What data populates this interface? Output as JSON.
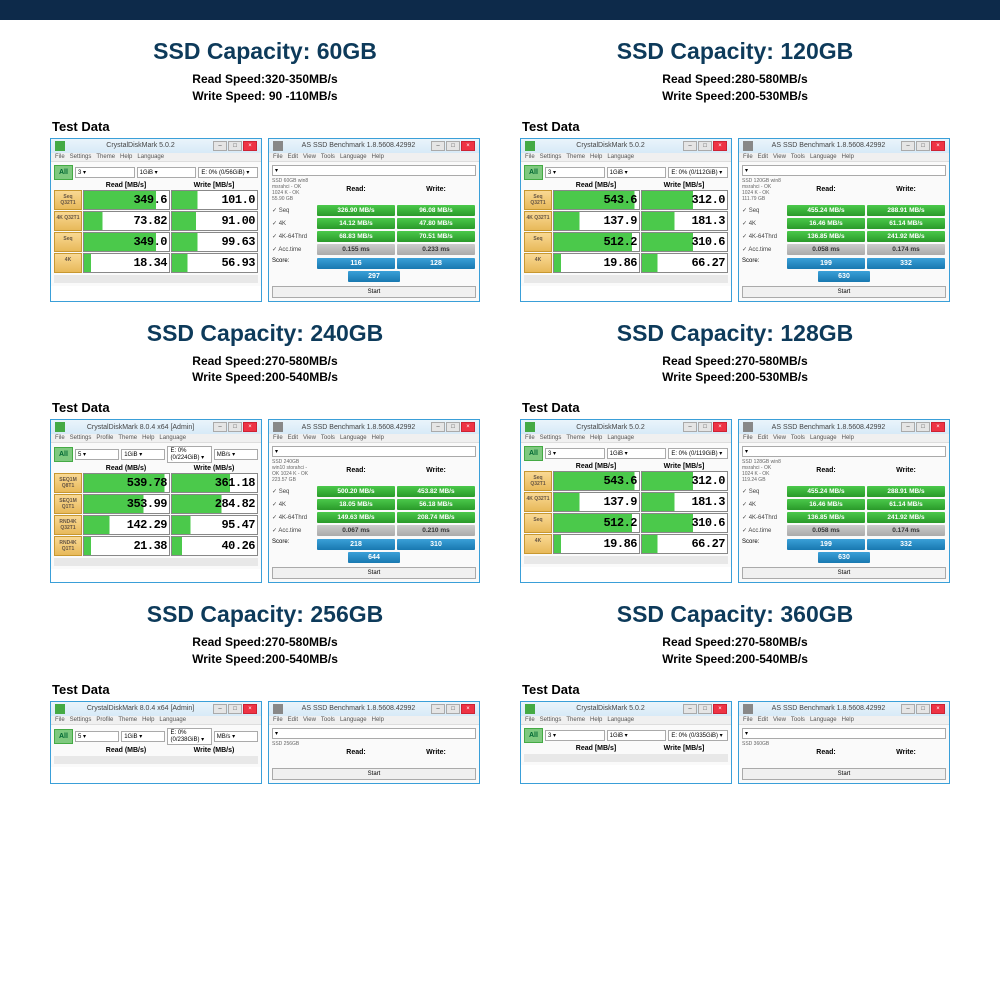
{
  "panels": [
    {
      "title": "SSD Capacity: 60GB",
      "read": "Read Speed:320-350MB/s",
      "write": "Write Speed: 90 -110MB/s",
      "testlabel": "Test Data",
      "cdm": {
        "wintitle": "CrystalDiskMark 5.0.2",
        "menus": [
          "File",
          "Settings",
          "Theme",
          "Help",
          "Language"
        ],
        "all": "All",
        "selects": [
          "3 ▾",
          "1GiB ▾",
          "E: 0% (0/56GiB) ▾"
        ],
        "hdr_read": "Read [MB/s]",
        "hdr_write": "Write [MB/s]",
        "rows": [
          {
            "btn": "Seq\nQ32T1",
            "r": "349.6",
            "w": "101.0",
            "rfill": 85,
            "wfill": 30
          },
          {
            "btn": "4K\nQ32T1",
            "r": "73.82",
            "w": "91.00",
            "rfill": 22,
            "wfill": 28
          },
          {
            "btn": "Seq",
            "r": "349.0",
            "w": "99.63",
            "rfill": 85,
            "wfill": 30
          },
          {
            "btn": "4K",
            "r": "18.34",
            "w": "56.93",
            "rfill": 8,
            "wfill": 18
          }
        ]
      },
      "as": {
        "wintitle": "AS SSD Benchmark 1.8.5608.42992",
        "menus": [
          "File",
          "Edit",
          "View",
          "Tools",
          "Language",
          "Help"
        ],
        "info": "SSD 60GB\nwin8\nmsrahci - OK\n1024 K - OK\n55.90 GB",
        "hdr_read": "Read:",
        "hdr_write": "Write:",
        "rows": [
          {
            "lab": "✓ Seq",
            "r": "326.90 MB/s",
            "w": "96.08 MB/s"
          },
          {
            "lab": "✓ 4K",
            "r": "14.12 MB/s",
            "w": "47.80 MB/s"
          },
          {
            "lab": "✓ 4K-64Thrd",
            "r": "68.83 MB/s",
            "w": "70.51 MB/s"
          },
          {
            "lab": "✓ Acc.time",
            "r": "0.155 ms",
            "w": "0.233 ms",
            "gray": true
          }
        ],
        "score_r": "116",
        "score_w": "128",
        "score_t": "297",
        "start": "Start"
      }
    },
    {
      "title": "SSD Capacity: 120GB",
      "read": "Read Speed:280-580MB/s",
      "write": "Write Speed:200-530MB/s",
      "testlabel": "Test Data",
      "cdm": {
        "wintitle": "CrystalDiskMark 5.0.2",
        "menus": [
          "File",
          "Settings",
          "Theme",
          "Help",
          "Language"
        ],
        "all": "All",
        "selects": [
          "3 ▾",
          "1GiB ▾",
          "E: 0% (0/112GiB) ▾"
        ],
        "hdr_read": "Read [MB/s]",
        "hdr_write": "Write [MB/s]",
        "rows": [
          {
            "btn": "Seq\nQ32T1",
            "r": "543.6",
            "w": "312.0",
            "rfill": 95,
            "wfill": 60
          },
          {
            "btn": "4K\nQ32T1",
            "r": "137.9",
            "w": "181.3",
            "rfill": 30,
            "wfill": 38
          },
          {
            "btn": "Seq",
            "r": "512.2",
            "w": "310.6",
            "rfill": 92,
            "wfill": 60
          },
          {
            "btn": "4K",
            "r": "19.86",
            "w": "66.27",
            "rfill": 8,
            "wfill": 18
          }
        ]
      },
      "as": {
        "wintitle": "AS SSD Benchmark 1.8.5608.42992",
        "menus": [
          "File",
          "Edit",
          "View",
          "Tools",
          "Language",
          "Help"
        ],
        "info": "SSD 120GB\nwin8\nmsrahci - OK\n1024 K - OK\n111.79 GB",
        "hdr_read": "Read:",
        "hdr_write": "Write:",
        "rows": [
          {
            "lab": "✓ Seq",
            "r": "455.24 MB/s",
            "w": "288.91 MB/s"
          },
          {
            "lab": "✓ 4K",
            "r": "16.46 MB/s",
            "w": "61.14 MB/s"
          },
          {
            "lab": "✓ 4K-64Thrd",
            "r": "136.85 MB/s",
            "w": "241.92 MB/s"
          },
          {
            "lab": "✓ Acc.time",
            "r": "0.058 ms",
            "w": "0.174 ms",
            "gray": true
          }
        ],
        "score_r": "199",
        "score_w": "332",
        "score_t": "630",
        "start": "Start"
      }
    },
    {
      "title": "SSD Capacity: 240GB",
      "read": "Read Speed:270-580MB/s",
      "write": "Write Speed:200-540MB/s",
      "testlabel": "Test Data",
      "cdm": {
        "wintitle": "CrystalDiskMark 8.0.4 x64 [Admin]",
        "menus": [
          "File",
          "Settings",
          "Profile",
          "Theme",
          "Help",
          "Language"
        ],
        "all": "All",
        "selects": [
          "5 ▾",
          "1GiB ▾",
          "E: 0% (0/224GiB) ▾",
          "MB/s ▾"
        ],
        "hdr_read": "Read (MB/s)",
        "hdr_write": "Write (MB/s)",
        "rows": [
          {
            "btn": "SEQ1M\nQ8T1",
            "r": "539.78",
            "w": "361.18",
            "rfill": 95,
            "wfill": 68
          },
          {
            "btn": "SEQ1M\nQ1T1",
            "r": "353.99",
            "w": "284.82",
            "rfill": 70,
            "wfill": 58
          },
          {
            "btn": "RND4K\nQ32T1",
            "r": "142.29",
            "w": "95.47",
            "rfill": 30,
            "wfill": 22
          },
          {
            "btn": "RND4K\nQ1T1",
            "r": "21.38",
            "w": "40.26",
            "rfill": 8,
            "wfill": 12
          }
        ]
      },
      "as": {
        "wintitle": "AS SSD Benchmark 1.8.5608.42992",
        "menus": [
          "File",
          "Edit",
          "View",
          "Tools",
          "Language",
          "Help"
        ],
        "info": "SSD 240GB\nwin10\nstorahci - OK\n1024 K - OK\n223.57 GB",
        "hdr_read": "Read:",
        "hdr_write": "Write:",
        "rows": [
          {
            "lab": "✓ Seq",
            "r": "500.20 MB/s",
            "w": "453.82 MB/s"
          },
          {
            "lab": "✓ 4K",
            "r": "18.05 MB/s",
            "w": "56.18 MB/s"
          },
          {
            "lab": "✓ 4K-64Thrd",
            "r": "149.63 MB/s",
            "w": "208.74 MB/s"
          },
          {
            "lab": "✓ Acc.time",
            "r": "0.067 ms",
            "w": "0.210 ms",
            "gray": true
          }
        ],
        "score_r": "218",
        "score_w": "310",
        "score_t": "644",
        "start": "Start"
      }
    },
    {
      "title": "SSD Capacity: 128GB",
      "read": "Read Speed:270-580MB/s",
      "write": "Write Speed:200-530MB/s",
      "testlabel": "Test Data",
      "cdm": {
        "wintitle": "CrystalDiskMark 5.0.2",
        "menus": [
          "File",
          "Settings",
          "Theme",
          "Help",
          "Language"
        ],
        "all": "All",
        "selects": [
          "3 ▾",
          "1GiB ▾",
          "E: 0% (0/119GiB) ▾"
        ],
        "hdr_read": "Read [MB/s]",
        "hdr_write": "Write [MB/s]",
        "rows": [
          {
            "btn": "Seq\nQ32T1",
            "r": "543.6",
            "w": "312.0",
            "rfill": 95,
            "wfill": 60
          },
          {
            "btn": "4K\nQ32T1",
            "r": "137.9",
            "w": "181.3",
            "rfill": 30,
            "wfill": 38
          },
          {
            "btn": "Seq",
            "r": "512.2",
            "w": "310.6",
            "rfill": 92,
            "wfill": 60
          },
          {
            "btn": "4K",
            "r": "19.86",
            "w": "66.27",
            "rfill": 8,
            "wfill": 18
          }
        ]
      },
      "as": {
        "wintitle": "AS SSD Benchmark 1.8.5608.42992",
        "menus": [
          "File",
          "Edit",
          "View",
          "Tools",
          "Language",
          "Help"
        ],
        "info": "SSD 128GB\nwin8\nmsrahci - OK\n1024 K - OK\n119.24 GB",
        "hdr_read": "Read:",
        "hdr_write": "Write:",
        "rows": [
          {
            "lab": "✓ Seq",
            "r": "455.24 MB/s",
            "w": "288.91 MB/s"
          },
          {
            "lab": "✓ 4K",
            "r": "16.46 MB/s",
            "w": "61.14 MB/s"
          },
          {
            "lab": "✓ 4K-64Thrd",
            "r": "136.85 MB/s",
            "w": "241.92 MB/s"
          },
          {
            "lab": "✓ Acc.time",
            "r": "0.058 ms",
            "w": "0.174 ms",
            "gray": true
          }
        ],
        "score_r": "199",
        "score_w": "332",
        "score_t": "630",
        "start": "Start"
      }
    },
    {
      "title": "SSD Capacity: 256GB",
      "read": "Read Speed:270-580MB/s",
      "write": "Write Speed:200-540MB/s",
      "testlabel": "Test Data",
      "cdm": {
        "wintitle": "CrystalDiskMark 8.0.4 x64 [Admin]",
        "menus": [
          "File",
          "Settings",
          "Profile",
          "Theme",
          "Help",
          "Language"
        ],
        "all": "All",
        "selects": [
          "5 ▾",
          "1GiB ▾",
          "E: 0% (0/238GiB) ▾",
          "MB/s ▾"
        ],
        "hdr_read": "Read (MB/s)",
        "hdr_write": "Write (MB/s)",
        "rows": []
      },
      "as": {
        "wintitle": "AS SSD Benchmark 1.8.5608.42992",
        "menus": [
          "File",
          "Edit",
          "View",
          "Tools",
          "Language",
          "Help"
        ],
        "info": "SSD 256GB",
        "hdr_read": "Read:",
        "hdr_write": "Write:",
        "rows": [],
        "start": "Start"
      }
    },
    {
      "title": "SSD Capacity: 360GB",
      "read": "Read Speed:270-580MB/s",
      "write": "Write Speed:200-540MB/s",
      "testlabel": "Test Data",
      "cdm": {
        "wintitle": "CrystalDiskMark 5.0.2",
        "menus": [
          "File",
          "Settings",
          "Theme",
          "Help",
          "Language"
        ],
        "all": "All",
        "selects": [
          "3 ▾",
          "1GiB ▾",
          "E: 0% (0/335GiB) ▾"
        ],
        "hdr_read": "Read [MB/s]",
        "hdr_write": "Write [MB/s]",
        "rows": []
      },
      "as": {
        "wintitle": "AS SSD Benchmark 1.8.5608.42992",
        "menus": [
          "File",
          "Edit",
          "View",
          "Tools",
          "Language",
          "Help"
        ],
        "info": "SSD 360GB",
        "hdr_read": "Read:",
        "hdr_write": "Write:",
        "rows": [],
        "start": "Start"
      }
    }
  ]
}
